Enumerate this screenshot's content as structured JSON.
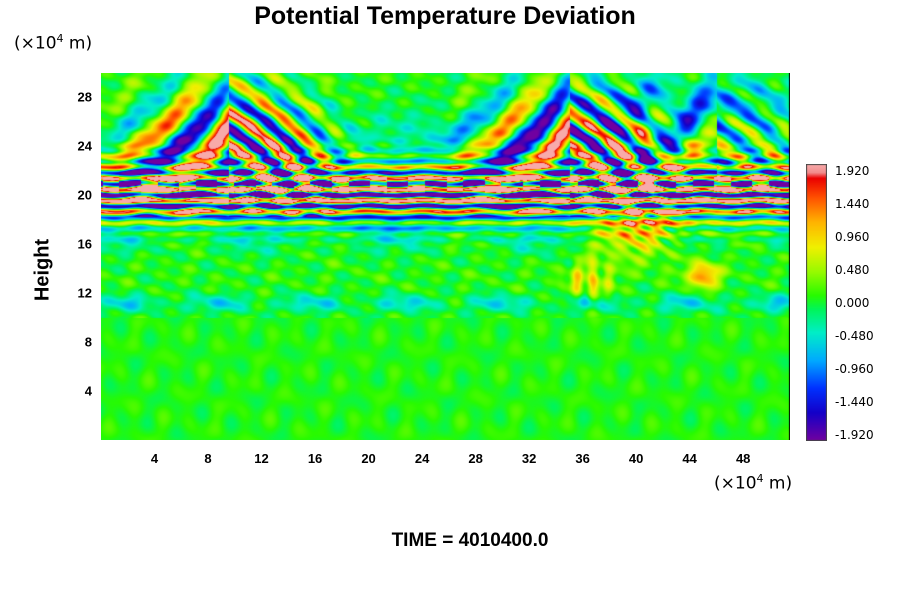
{
  "chart_data": {
    "type": "heatmap",
    "title": "Potential Temperature Deviation",
    "ylabel": "Height",
    "y_unit": {
      "base": "(×10",
      "exp": "4",
      "rest": " m)"
    },
    "x_unit": {
      "base": "(×10",
      "exp": "4",
      "rest": " m)"
    },
    "xlim": [
      0,
      51.5
    ],
    "ylim": [
      0,
      30
    ],
    "x_ticks": [
      "4",
      "8",
      "12",
      "16",
      "20",
      "24",
      "28",
      "32",
      "36",
      "40",
      "44",
      "48"
    ],
    "x_tick_values": [
      4,
      8,
      12,
      16,
      20,
      24,
      28,
      32,
      36,
      40,
      44,
      48
    ],
    "y_ticks": [
      "4",
      "8",
      "12",
      "16",
      "20",
      "24",
      "28"
    ],
    "y_tick_values": [
      4,
      8,
      12,
      16,
      20,
      24,
      28
    ],
    "colorbar": {
      "range": [
        -1.92,
        1.92
      ],
      "labels": [
        "1.920",
        "1.440",
        "0.960",
        "0.480",
        "0.000",
        "-0.480",
        "-0.960",
        "-1.440",
        "-1.920"
      ],
      "values": [
        1.92,
        1.44,
        0.96,
        0.48,
        0.0,
        -0.48,
        -0.96,
        -1.44,
        -1.92
      ]
    },
    "features": [
      {
        "name": "tropopause-band",
        "y_center": 20.3,
        "x_range": [
          0,
          51.5
        ]
      },
      {
        "name": "wave-burst-left",
        "x_center": 9.5,
        "y_center": 22.5
      },
      {
        "name": "wave-burst-right",
        "x_center": 35,
        "y_center": 22.5
      },
      {
        "name": "positive-patch",
        "x_center": 40.5,
        "y_center": 17
      }
    ]
  },
  "time_label": "TIME = 4010400.0"
}
